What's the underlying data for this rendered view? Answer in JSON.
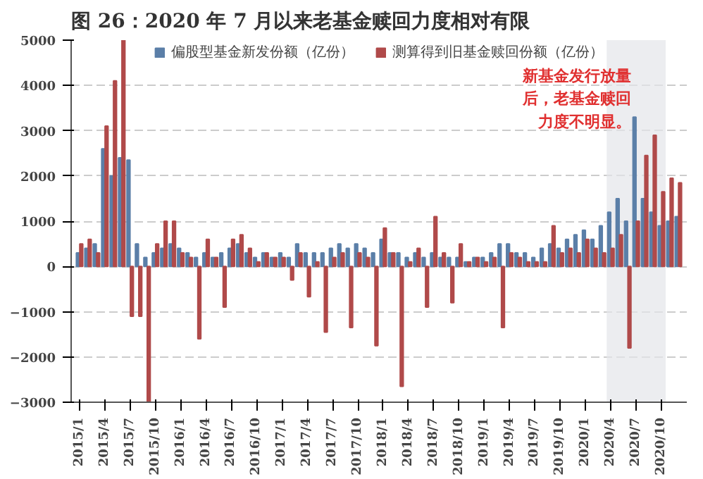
{
  "chart_data": {
    "type": "bar",
    "title": "图 26：2020 年 7 月以来老基金赎回力度相对有限",
    "categories": [
      "2015/1",
      null,
      null,
      "2015/4",
      null,
      null,
      "2015/7",
      null,
      null,
      "2015/10",
      null,
      null,
      "2016/1",
      null,
      null,
      "2016/4",
      null,
      null,
      "2016/7",
      null,
      null,
      "2016/10",
      null,
      null,
      "2017/1",
      null,
      null,
      "2017/4",
      null,
      null,
      "2017/7",
      null,
      null,
      "2017/10",
      null,
      null,
      "2018/1",
      null,
      null,
      "2018/4",
      null,
      null,
      "2018/7",
      null,
      null,
      "2018/10",
      null,
      null,
      "2019/1",
      null,
      null,
      "2019/4",
      null,
      null,
      "2019/7",
      null,
      null,
      "2019/10",
      null,
      null,
      "2020/1",
      null,
      null,
      "2020/4",
      null,
      null,
      "2020/7",
      null,
      null,
      "2020/10",
      null,
      null
    ],
    "series": [
      {
        "name": "偏股型基金新发份额（亿份）",
        "color": "#5b7fa8",
        "values": [
          300,
          400,
          500,
          2600,
          2000,
          2400,
          2350,
          500,
          200,
          300,
          400,
          500,
          400,
          300,
          200,
          300,
          200,
          300,
          400,
          500,
          300,
          200,
          300,
          200,
          300,
          200,
          500,
          300,
          300,
          300,
          400,
          500,
          400,
          500,
          400,
          300,
          600,
          300,
          300,
          200,
          300,
          200,
          300,
          200,
          200,
          200,
          100,
          200,
          200,
          300,
          500,
          500,
          300,
          300,
          200,
          400,
          500,
          400,
          600,
          700,
          800,
          600,
          900,
          1200,
          1500,
          1000,
          3300,
          1500,
          1200,
          900,
          1000,
          1100
        ]
      },
      {
        "name": "测算得到旧基金赎回份额（亿份）",
        "color": "#b04a4a",
        "values": [
          500,
          600,
          300,
          3100,
          4100,
          5000,
          -1100,
          -1100,
          -3000,
          500,
          1000,
          1000,
          300,
          200,
          -1600,
          600,
          200,
          -900,
          600,
          700,
          400,
          100,
          300,
          200,
          200,
          -300,
          300,
          -670,
          100,
          -1450,
          200,
          300,
          -1350,
          300,
          200,
          -1750,
          850,
          300,
          -2650,
          100,
          400,
          -900,
          1100,
          300,
          -800,
          500,
          100,
          200,
          100,
          200,
          -1350,
          300,
          200,
          100,
          100,
          100,
          900,
          300,
          400,
          300,
          600,
          400,
          300,
          400,
          700,
          -1800,
          1000,
          2450,
          2900,
          1650,
          1950,
          1850
        ]
      }
    ],
    "ylim": [
      -3000,
      5000
    ],
    "yticks": [
      -3000,
      -2000,
      -1000,
      0,
      1000,
      2000,
      3000,
      4000,
      5000
    ],
    "grid": "y",
    "legend": "top",
    "bands": [
      {
        "axis": "x",
        "from": "2020/4",
        "to": "2020/10",
        "color": "#e4e6ea"
      }
    ],
    "annotations": [
      "新基金发行放量后，老基金赎回力度不明显。"
    ]
  }
}
